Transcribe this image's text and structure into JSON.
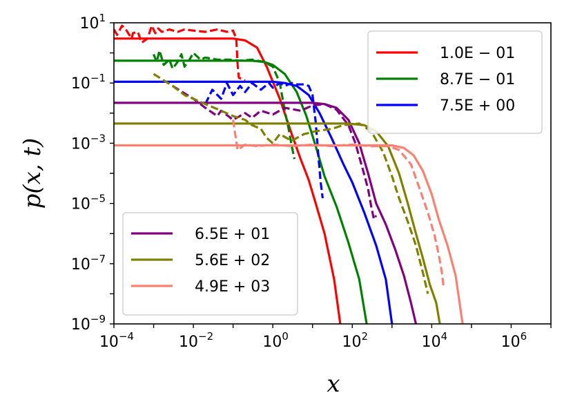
{
  "chart_data": {
    "type": "line",
    "title": "",
    "xlabel": "x",
    "ylabel": "p(x, t)",
    "xscale": "log",
    "yscale": "log",
    "xlim": [
      0.0001,
      10000000
    ],
    "ylim": [
      1e-09,
      10
    ],
    "grid": false,
    "x_tick_labels": [
      {
        "base": "10",
        "exp": "−4",
        "value": 0.0001
      },
      {
        "base": "10",
        "exp": "−2",
        "value": 0.01
      },
      {
        "base": "10",
        "exp": "0",
        "value": 1
      },
      {
        "base": "10",
        "exp": "2",
        "value": 100
      },
      {
        "base": "10",
        "exp": "4",
        "value": 10000
      },
      {
        "base": "10",
        "exp": "6",
        "value": 1000000
      }
    ],
    "y_tick_labels": [
      {
        "base": "10",
        "exp": "1",
        "value": 10
      },
      {
        "base": "10",
        "exp": "−1",
        "value": 0.1
      },
      {
        "base": "10",
        "exp": "−3",
        "value": 0.001
      },
      {
        "base": "10",
        "exp": "−5",
        "value": 1e-05
      },
      {
        "base": "10",
        "exp": "−7",
        "value": 1e-07
      },
      {
        "base": "10",
        "exp": "−9",
        "value": 1e-09
      }
    ],
    "legends": [
      {
        "placement": "top-right",
        "entries": [
          0,
          1,
          2
        ]
      },
      {
        "placement": "bottom-left",
        "entries": [
          3,
          4,
          5
        ]
      }
    ],
    "line_styles": {
      "solid": "solid",
      "dashed": "dashed"
    },
    "series": [
      {
        "name": "1.0E − 01",
        "color": "#ff0000",
        "solid": [
          [
            0.0001,
            3.0
          ],
          [
            0.1,
            3.0
          ],
          [
            0.2,
            2.6
          ],
          [
            0.4,
            1.5
          ],
          [
            0.7,
            0.35
          ],
          [
            1.5,
            0.03
          ],
          [
            3,
            0.002
          ],
          [
            5,
            0.0003
          ],
          [
            8,
            6e-05
          ],
          [
            12,
            1e-05
          ],
          [
            20,
            1e-06
          ],
          [
            35,
            3e-08
          ],
          [
            50,
            1e-09
          ]
        ],
        "dashed": [
          [
            0.0001,
            6
          ],
          [
            0.00012,
            4
          ],
          [
            0.00016,
            8
          ],
          [
            0.0002,
            6
          ],
          [
            0.00028,
            3
          ],
          [
            0.0003,
            4.5
          ],
          [
            0.0004,
            5
          ],
          [
            0.0005,
            2.2
          ],
          [
            0.0007,
            3
          ],
          [
            0.0009,
            8
          ],
          [
            0.0011,
            4.5
          ],
          [
            0.0013,
            6.5
          ],
          [
            0.0016,
            5
          ],
          [
            0.0025,
            6
          ],
          [
            0.004,
            5
          ],
          [
            0.006,
            6
          ],
          [
            0.01,
            5.5
          ],
          [
            0.02,
            5
          ],
          [
            0.04,
            6
          ],
          [
            0.07,
            5
          ],
          [
            0.1,
            5.5
          ],
          [
            0.12,
            3
          ],
          [
            0.13,
            0.4
          ],
          [
            0.14,
            0.15
          ],
          [
            0.2,
            0.12
          ]
        ]
      },
      {
        "name": "8.7E − 01",
        "color": "#008000",
        "solid": [
          [
            0.0001,
            0.55
          ],
          [
            0.3,
            0.55
          ],
          [
            0.6,
            0.5
          ],
          [
            1,
            0.4
          ],
          [
            2,
            0.2
          ],
          [
            4,
            0.05
          ],
          [
            7,
            0.008
          ],
          [
            12,
            0.0008
          ],
          [
            20,
            8e-05
          ],
          [
            40,
            8e-06
          ],
          [
            80,
            5e-07
          ],
          [
            150,
            3e-08
          ],
          [
            230,
            1e-09
          ]
        ],
        "dashed": [
          [
            0.001,
            0.9
          ],
          [
            0.0012,
            0.5
          ],
          [
            0.0014,
            1.2
          ],
          [
            0.0018,
            0.4
          ],
          [
            0.0025,
            0.6
          ],
          [
            0.003,
            0.3
          ],
          [
            0.004,
            0.5
          ],
          [
            0.005,
            0.9
          ],
          [
            0.006,
            0.35
          ],
          [
            0.008,
            0.6
          ],
          [
            0.01,
            1.0
          ],
          [
            0.015,
            0.6
          ],
          [
            0.02,
            0.7
          ],
          [
            0.04,
            0.6
          ],
          [
            0.08,
            0.6
          ],
          [
            0.15,
            0.55
          ],
          [
            0.3,
            0.6
          ],
          [
            0.6,
            0.5
          ],
          [
            1,
            0.35
          ],
          [
            1.5,
            0.1
          ],
          [
            2,
            0.012
          ],
          [
            2.5,
            0.003
          ],
          [
            3,
            0.0008
          ],
          [
            3.5,
            0.0003
          ]
        ]
      },
      {
        "name": "7.5E + 00",
        "color": "#0000ff",
        "solid": [
          [
            0.0001,
            0.11
          ],
          [
            1,
            0.11
          ],
          [
            2,
            0.1
          ],
          [
            4,
            0.08
          ],
          [
            8,
            0.04
          ],
          [
            15,
            0.01
          ],
          [
            30,
            0.0015
          ],
          [
            60,
            0.0002
          ],
          [
            100,
            5e-05
          ],
          [
            200,
            5e-06
          ],
          [
            400,
            4e-07
          ],
          [
            700,
            3e-08
          ],
          [
            1000,
            1e-09
          ]
        ],
        "dashed": [
          [
            0.02,
            0.02
          ],
          [
            0.03,
            0.06
          ],
          [
            0.05,
            0.03
          ],
          [
            0.07,
            0.1
          ],
          [
            0.1,
            0.04
          ],
          [
            0.15,
            0.08
          ],
          [
            0.2,
            0.05
          ],
          [
            0.3,
            0.1
          ],
          [
            0.5,
            0.06
          ],
          [
            0.8,
            0.1
          ],
          [
            1,
            0.07
          ],
          [
            1.5,
            0.1
          ],
          [
            2,
            0.08
          ],
          [
            3,
            0.1
          ],
          [
            4,
            0.09
          ],
          [
            6,
            0.09
          ],
          [
            8,
            0.08
          ],
          [
            10,
            0.04
          ],
          [
            12,
            0.005
          ],
          [
            14,
            0.0004
          ],
          [
            16,
            5e-05
          ],
          [
            18,
            1.5e-05
          ]
        ]
      },
      {
        "name": "6.5E + 01",
        "color": "#800080",
        "solid": [
          [
            0.0001,
            0.022
          ],
          [
            10,
            0.022
          ],
          [
            20,
            0.02
          ],
          [
            40,
            0.015
          ],
          [
            80,
            0.006
          ],
          [
            150,
            0.001
          ],
          [
            250,
            0.0001
          ],
          [
            400,
            1e-05
          ],
          [
            700,
            2e-06
          ],
          [
            1200,
            3e-07
          ],
          [
            2000,
            4e-08
          ],
          [
            3000,
            5e-09
          ],
          [
            4000,
            1e-09
          ]
        ],
        "dashed": [
          [
            0.003,
            0.08
          ],
          [
            0.01,
            0.03
          ],
          [
            0.02,
            0.015
          ],
          [
            0.04,
            0.008
          ],
          [
            0.05,
            0.012
          ],
          [
            0.1,
            0.006
          ],
          [
            0.2,
            0.01
          ],
          [
            0.3,
            0.007
          ],
          [
            0.5,
            0.012
          ],
          [
            1,
            0.009
          ],
          [
            2,
            0.015
          ],
          [
            5,
            0.012
          ],
          [
            10,
            0.018
          ],
          [
            20,
            0.02
          ],
          [
            40,
            0.013
          ],
          [
            80,
            0.004
          ],
          [
            120,
            0.001
          ],
          [
            180,
            0.00015
          ],
          [
            250,
            3e-05
          ],
          [
            300,
            8e-06
          ],
          [
            350,
            3e-06
          ],
          [
            400,
            4e-06
          ]
        ]
      },
      {
        "name": "5.6E + 02",
        "color": "#808000",
        "solid": [
          [
            0.0001,
            0.0045
          ],
          [
            80,
            0.0045
          ],
          [
            200,
            0.004
          ],
          [
            400,
            0.0025
          ],
          [
            800,
            0.0008
          ],
          [
            1500,
            0.0001
          ],
          [
            2500,
            1e-05
          ],
          [
            4000,
            1e-06
          ],
          [
            6000,
            1.5e-07
          ],
          [
            9000,
            2e-08
          ],
          [
            13000,
            5e-09
          ],
          [
            16000,
            1e-09
          ]
        ],
        "dashed": [
          [
            0.001,
            0.2
          ],
          [
            0.003,
            0.08
          ],
          [
            0.006,
            0.04
          ],
          [
            0.01,
            0.03
          ],
          [
            0.02,
            0.02
          ],
          [
            0.05,
            0.012
          ],
          [
            0.1,
            0.008
          ],
          [
            0.2,
            0.006
          ],
          [
            0.3,
            0.004
          ],
          [
            0.5,
            0.003
          ],
          [
            0.7,
            0.0015
          ],
          [
            1,
            0.001
          ],
          [
            1.5,
            0.002
          ],
          [
            3,
            0.0012
          ],
          [
            6,
            0.002
          ],
          [
            12,
            0.0025
          ],
          [
            30,
            0.003
          ],
          [
            60,
            0.004
          ],
          [
            150,
            0.0045
          ],
          [
            300,
            0.0025
          ],
          [
            600,
            0.0005
          ],
          [
            1000,
            8e-05
          ],
          [
            1500,
            1.5e-05
          ],
          [
            2500,
            2.5e-06
          ],
          [
            4000,
            4e-07
          ],
          [
            6000,
            5e-08
          ],
          [
            8000,
            1e-08
          ]
        ]
      },
      {
        "name": "4.9E + 03",
        "color": "#fa8072",
        "solid": [
          [
            0.0001,
            0.00085
          ],
          [
            1000,
            0.00085
          ],
          [
            2000,
            0.0007
          ],
          [
            3500,
            0.0004
          ],
          [
            6000,
            0.00012
          ],
          [
            10000,
            2e-05
          ],
          [
            15000,
            3e-06
          ],
          [
            25000,
            4e-07
          ],
          [
            40000,
            4e-08
          ],
          [
            60000,
            1e-09
          ]
        ],
        "dashed": [
          [
            0.1,
            0.006
          ],
          [
            0.13,
            0.0006
          ],
          [
            0.2,
            0.0009
          ],
          [
            0.4,
            0.0008
          ],
          [
            1,
            0.0009
          ],
          [
            3,
            0.0008
          ],
          [
            10,
            0.0009
          ],
          [
            30,
            0.0008
          ],
          [
            100,
            0.0009
          ],
          [
            300,
            0.0008
          ],
          [
            800,
            0.0008
          ],
          [
            1500,
            0.0006
          ],
          [
            3000,
            0.0002
          ],
          [
            5000,
            3e-05
          ],
          [
            8000,
            5e-06
          ],
          [
            12000,
            8e-07
          ],
          [
            15000,
            2e-07
          ],
          [
            18000,
            5e-08
          ],
          [
            20000,
            1.5e-08
          ]
        ]
      }
    ]
  }
}
